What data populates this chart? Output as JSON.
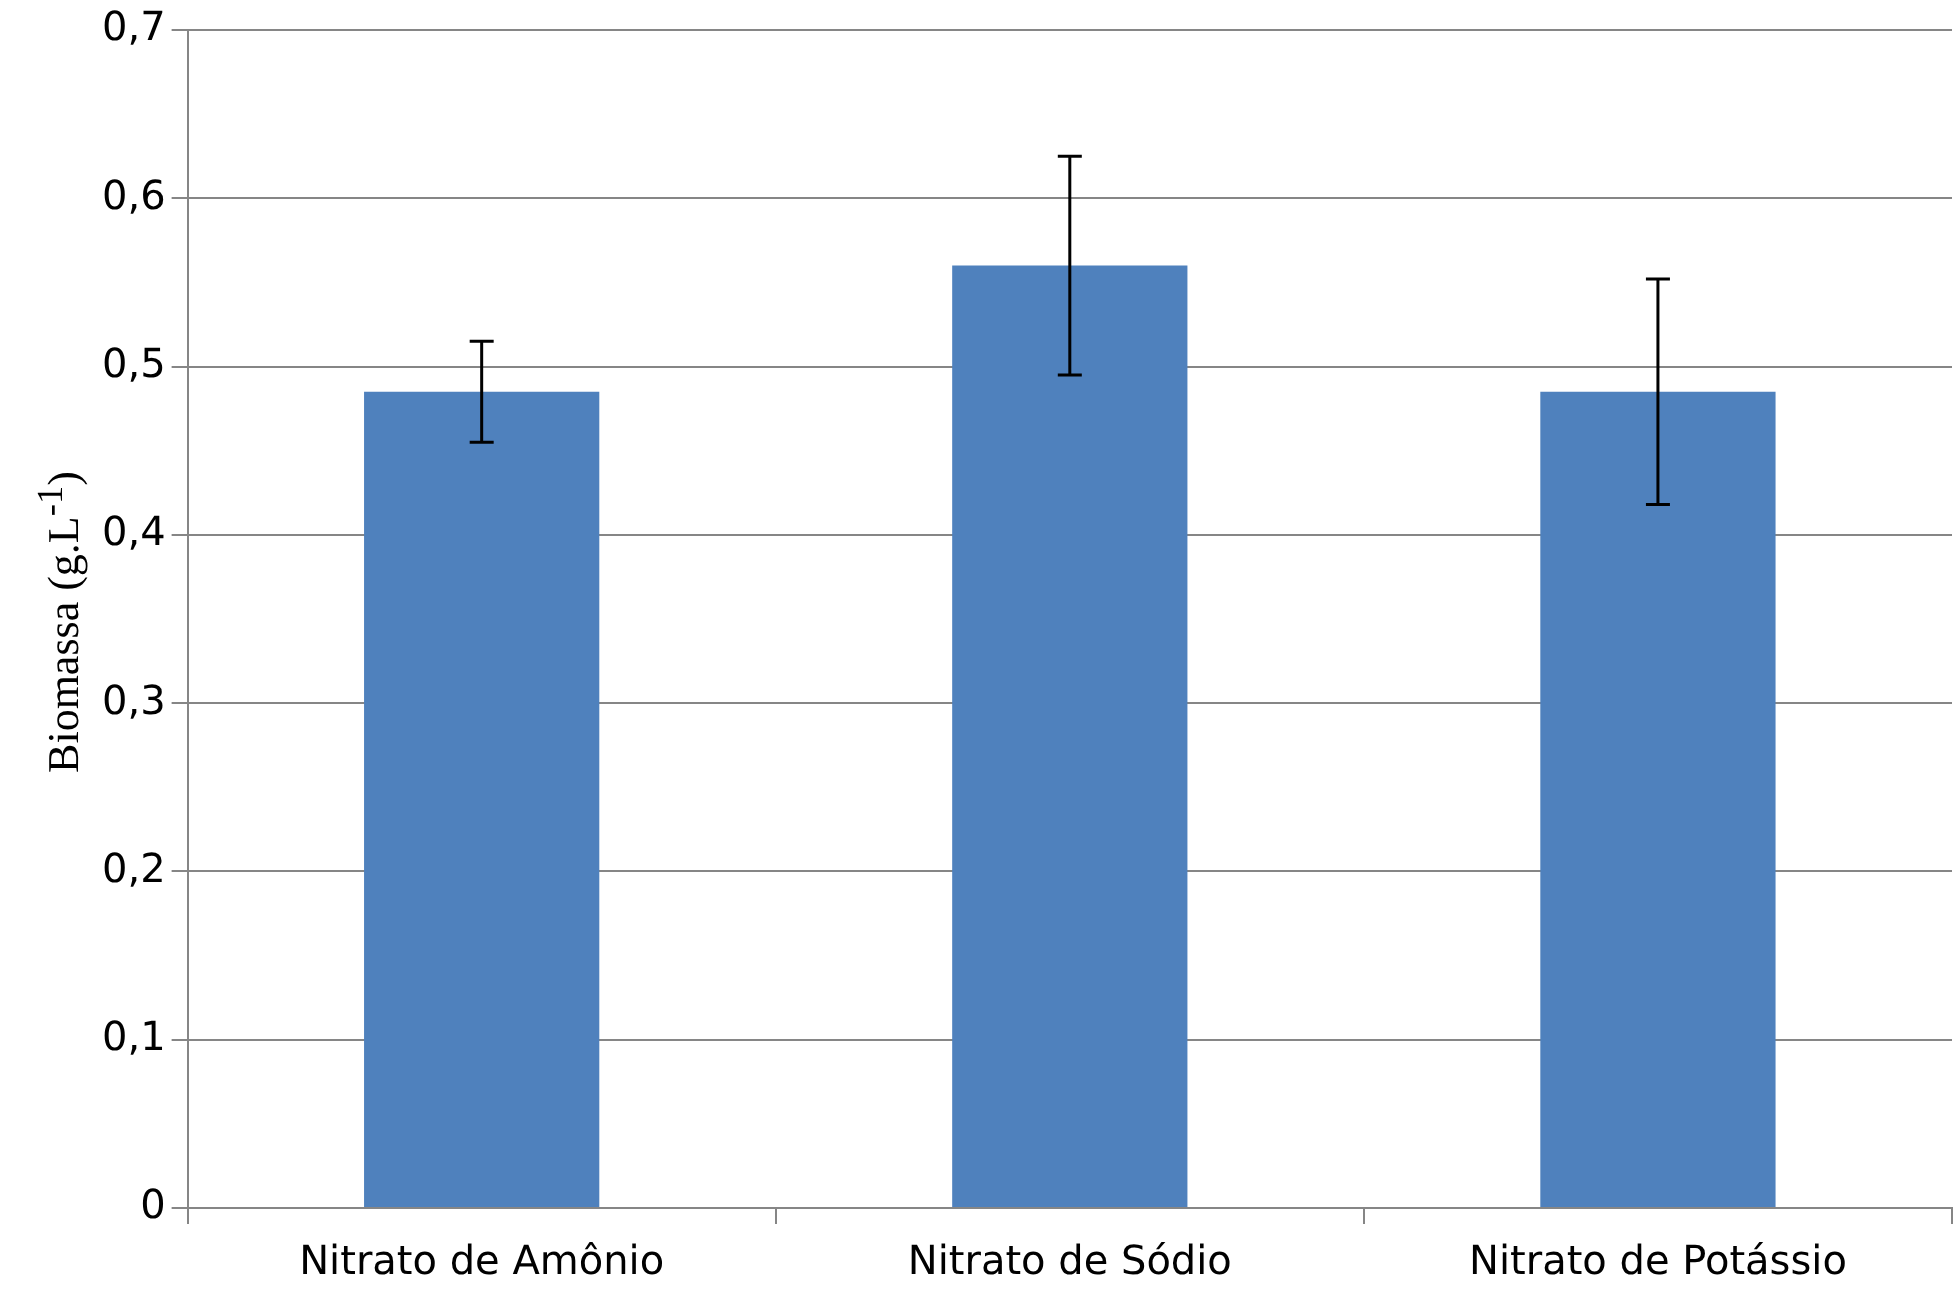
{
  "chart_data": {
    "type": "bar",
    "ylabel": "Biomassa (g.L$^{-1}$)",
    "categories": [
      "Nitrato de Amônio",
      "Nitrato de Sódio",
      "Nitrato de Potássio"
    ],
    "values": [
      0.485,
      0.56,
      0.485
    ],
    "errors": [
      0.03,
      0.065,
      0.067
    ],
    "color": "#4f81bd",
    "ylim": [
      0,
      0.7
    ],
    "yticks": [
      0,
      {
        "value": 0.1,
        "label": "0,1"
      },
      {
        "value": 0.2,
        "label": "0,2"
      },
      {
        "value": 0.3,
        "label": "0,3"
      },
      {
        "value": 0.4,
        "label": "0,4"
      },
      {
        "value": 0.5,
        "label": "0,5"
      },
      {
        "value": 0.6,
        "label": "0,6"
      },
      {
        "value": 0.7,
        "label": "0,7"
      }
    ],
    "grid": "y",
    "legend": false
  }
}
